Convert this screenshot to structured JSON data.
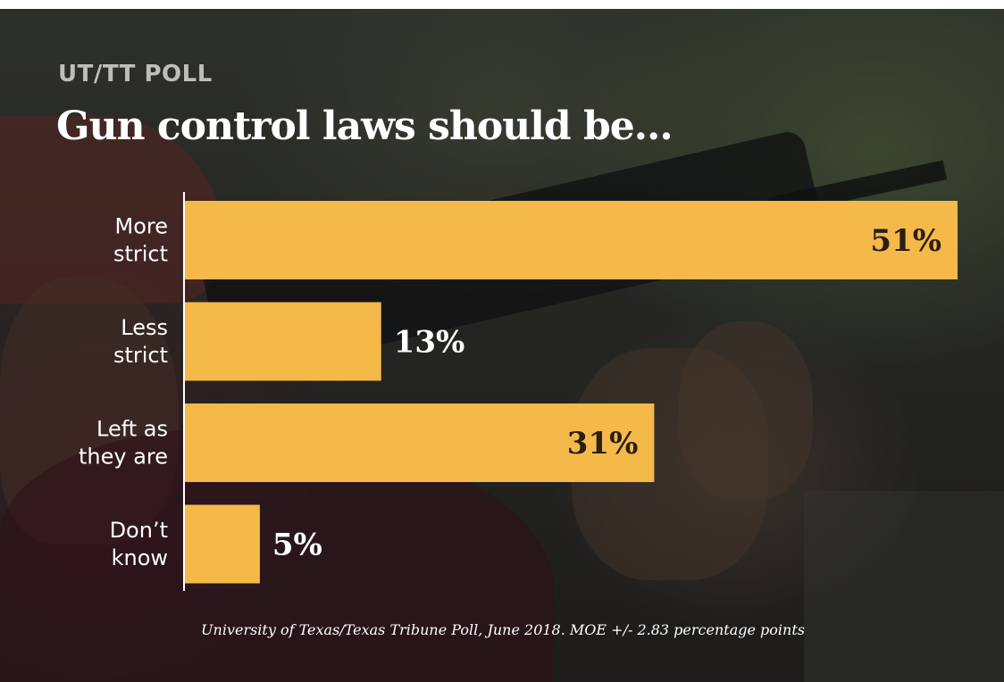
{
  "header": {
    "kicker": "UT/TT POLL"
  },
  "footer": {
    "source": "University of Texas/Texas Tribune Poll, June 2018. MOE +/- 2.83 percentage points"
  },
  "colors": {
    "bar": "#f5b94a",
    "inside_label": "#2a1f14",
    "outside_label": "#ffffff",
    "axis": "#ffffff"
  },
  "chart_data": {
    "type": "bar",
    "orientation": "horizontal",
    "title": "Gun control laws should be...",
    "categories": [
      [
        "More",
        "strict"
      ],
      [
        "Less",
        "strict"
      ],
      [
        "Left as",
        "they are"
      ],
      [
        "Don’t",
        "know"
      ]
    ],
    "values": [
      51,
      13,
      31,
      5
    ],
    "value_labels": [
      "51%",
      "13%",
      "31%",
      "5%"
    ],
    "xlim": [
      0,
      51
    ],
    "grid": false,
    "legend": "none"
  }
}
